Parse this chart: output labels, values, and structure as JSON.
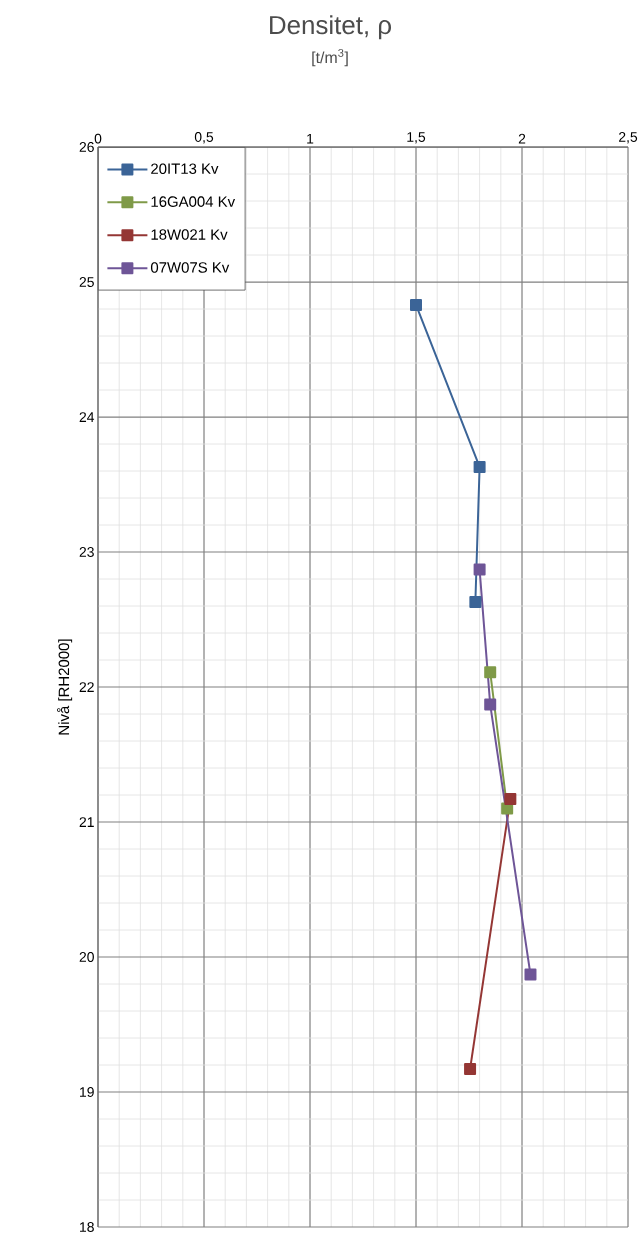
{
  "chart_data": {
    "type": "line",
    "title": "Densitet, ρ",
    "subtitle": "[t/m$^{3}$]",
    "ylabel": "Nivå [RH2000]",
    "xlim": [
      0,
      2.5
    ],
    "xticks": [
      0,
      {
        "value": 0.5,
        "label": "0,5"
      },
      1,
      {
        "value": 1.5,
        "label": "1,5"
      },
      2,
      {
        "value": 2.5,
        "label": "2,5"
      }
    ],
    "ylim": [
      18,
      26
    ],
    "yticks": [
      18,
      19,
      20,
      21,
      22,
      23,
      24,
      25,
      26
    ],
    "grid": true,
    "legend": "top left",
    "marker": "square",
    "line_style": "solid",
    "series": [
      {
        "name": "20IT13 Kv",
        "color": "#3b6497",
        "x": [
          1.5,
          1.8,
          1.78
        ],
        "values": [
          24.83,
          23.63,
          22.63
        ]
      },
      {
        "name": "16GA004 Kv",
        "color": "#7f9a48",
        "x": [
          1.85,
          1.93
        ],
        "values": [
          22.11,
          21.1
        ]
      },
      {
        "name": "18W021 Kv",
        "color": "#943634",
        "x": [
          1.945,
          1.755
        ],
        "values": [
          21.17,
          19.17
        ]
      },
      {
        "name": "07W07S Kv",
        "color": "#6e5597",
        "x": [
          1.8,
          1.85,
          2.04
        ],
        "values": [
          22.87,
          21.87,
          19.87
        ]
      }
    ]
  }
}
